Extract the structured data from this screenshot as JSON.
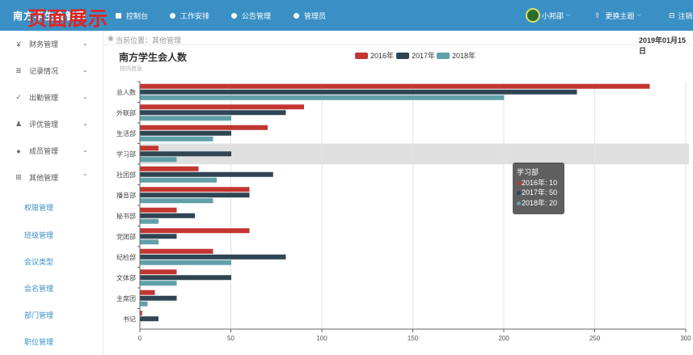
{
  "app": {
    "brand": "南方学生会管理",
    "overlay_title": "页面展示"
  },
  "header": {
    "nav": [
      {
        "label": "控制台",
        "icon": "dashboard-icon"
      },
      {
        "label": "工作安排",
        "icon": "work-icon"
      },
      {
        "label": "公告管理",
        "icon": "notice-icon"
      },
      {
        "label": "管理员",
        "icon": "admin-icon"
      }
    ],
    "user": "小邦邵",
    "theme": "更换主题",
    "logout": "注销"
  },
  "sidebar": {
    "items": [
      {
        "label": "财务管理",
        "icon": "yen-icon",
        "glyph": "¥"
      },
      {
        "label": "记录情况",
        "icon": "record-icon",
        "glyph": "≣"
      },
      {
        "label": "出勤管理",
        "icon": "check-icon",
        "glyph": "✓"
      },
      {
        "label": "评优管理",
        "icon": "award-icon",
        "glyph": "♟"
      },
      {
        "label": "成员管理",
        "icon": "members-icon",
        "glyph": "●"
      },
      {
        "label": "其他管理",
        "icon": "grid-icon",
        "glyph": "⊞"
      }
    ],
    "subitems": [
      "权限管理",
      "班级管理",
      "会议类型",
      "会名管理",
      "部门管理",
      "职位管理"
    ]
  },
  "breadcrumb": {
    "text": "当前位置：其他管理",
    "date": "2019年01月15日"
  },
  "chart_data": {
    "type": "bar",
    "orientation": "horizontal",
    "title": "南方学生会人数",
    "subtitle": "校内信息",
    "categories": [
      "总人数",
      "外联部",
      "生活部",
      "学习部",
      "社团部",
      "播音部",
      "秘书部",
      "党团部",
      "纪检部",
      "文体部",
      "主席团",
      "书记"
    ],
    "series": [
      {
        "name": "2016年",
        "color": "#c23531",
        "values": [
          280,
          90,
          70,
          10,
          32,
          60,
          20,
          60,
          40,
          20,
          8,
          1
        ]
      },
      {
        "name": "2017年",
        "color": "#2f4554",
        "values": [
          240,
          80,
          50,
          50,
          73,
          60,
          30,
          20,
          80,
          50,
          20,
          10
        ]
      },
      {
        "name": "2018年",
        "color": "#61a0a8",
        "values": [
          200,
          50,
          40,
          20,
          42,
          40,
          10,
          10,
          50,
          20,
          4,
          0
        ]
      }
    ],
    "xlim": [
      0,
      300
    ],
    "xticks": [
      "0",
      "50",
      "100",
      "150",
      "200",
      "250",
      "300"
    ],
    "grid": true,
    "legend": "top",
    "highlight_category": "学习部"
  },
  "tooltip": {
    "title": "学习部",
    "lines": [
      "2016年: 10",
      "2017年: 50",
      "2018年: 20"
    ]
  }
}
